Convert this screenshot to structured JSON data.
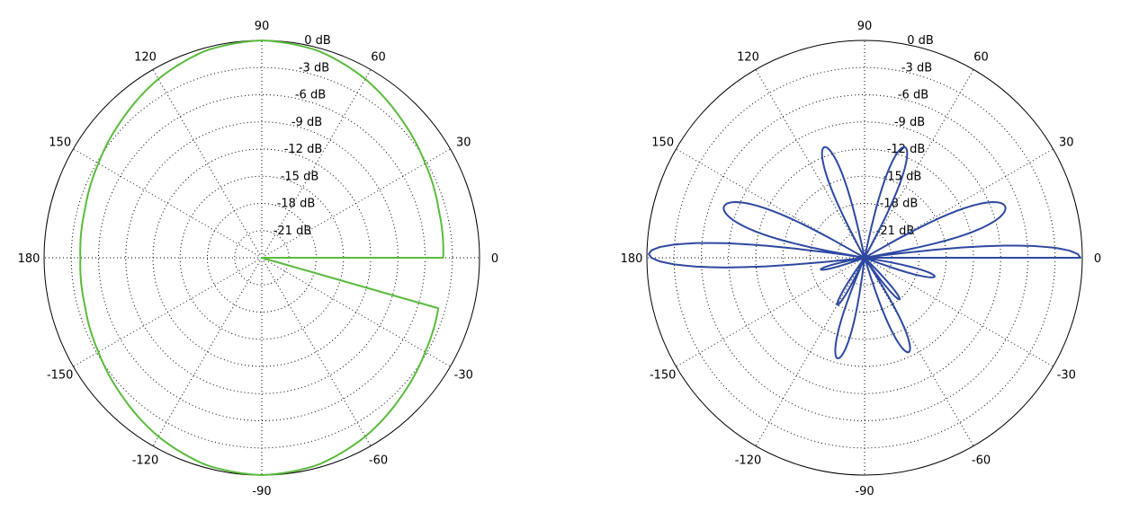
{
  "chart_data": [
    {
      "type": "polar",
      "angle_labels": [
        "0",
        "30",
        "60",
        "90",
        "120",
        "150",
        "180",
        "-150",
        "-120",
        "-90",
        "-60",
        "-30"
      ],
      "angle_values": [
        0,
        30,
        60,
        90,
        120,
        150,
        180,
        -150,
        -120,
        -90,
        -60,
        -30
      ],
      "radial_labels": [
        "0 dB",
        "-3 dB",
        "-6 dB",
        "-9 dB",
        "-12 dB",
        "-15 dB",
        "-18 dB",
        "-21 dB"
      ],
      "radial_values": [
        0,
        -3,
        -6,
        -9,
        -12,
        -15,
        -18,
        -21
      ],
      "rlim": [
        -24,
        0
      ],
      "grid": true,
      "series": [
        {
          "color": "#5aba3c",
          "theta": [
            0,
            15,
            30,
            45,
            60,
            75,
            90,
            105,
            120,
            135,
            150,
            165,
            180,
            195,
            210,
            225,
            240,
            255,
            270,
            285,
            300,
            315,
            330,
            345
          ],
          "r": [
            -4,
            -3.8,
            -3.2,
            -2.3,
            -1.2,
            -0.3,
            0,
            -0.3,
            -1.2,
            -2.3,
            -3.2,
            -3.8,
            -4,
            -3.8,
            -3.2,
            -2.3,
            -1.2,
            -0.3,
            0,
            -0.3,
            -1.2,
            -2.3,
            -3.2,
            -3.8
          ]
        },
        {
          "color": "#2d48a0",
          "theta": [
            0,
            1,
            2,
            3,
            4,
            5,
            6,
            7,
            8,
            9,
            10,
            11,
            12,
            13,
            14,
            15,
            16,
            17,
            18,
            19,
            20,
            21,
            22,
            23,
            24,
            25,
            26,
            27,
            28,
            29,
            30,
            31,
            32,
            33,
            34,
            35,
            36,
            37,
            38,
            39,
            40,
            41,
            42,
            43,
            44,
            45,
            46,
            47,
            48,
            49,
            50,
            51,
            52,
            53,
            54,
            55,
            56,
            57,
            58,
            59,
            60,
            61,
            62,
            63,
            64,
            65,
            66,
            67,
            68,
            69,
            70,
            71,
            72,
            73,
            74,
            75,
            76,
            77,
            78,
            79,
            80,
            81,
            82,
            83,
            84,
            85,
            86,
            87,
            88,
            89,
            90,
            91,
            92,
            93,
            94,
            95,
            96,
            97,
            98,
            99,
            100,
            101,
            102,
            103,
            104,
            105,
            106,
            107,
            108,
            109,
            110,
            111,
            112,
            113,
            114,
            115,
            116,
            117,
            118,
            119,
            120,
            121,
            122,
            123,
            124,
            125,
            126,
            127,
            128,
            129,
            130,
            131,
            132,
            133,
            134,
            135,
            136,
            137,
            138,
            139,
            140,
            141,
            142,
            143,
            144,
            145,
            146,
            147,
            148,
            149,
            150,
            151,
            152,
            153,
            154,
            155,
            156,
            157,
            158,
            159,
            160,
            161,
            162,
            163,
            164,
            165,
            166,
            167,
            168,
            169,
            170,
            171,
            172,
            173,
            174,
            175,
            176,
            177,
            178,
            179,
            180,
            181,
            182,
            183,
            184,
            185,
            186,
            187,
            188,
            189,
            190,
            191,
            192,
            193,
            194,
            195,
            196,
            197,
            198,
            199,
            200,
            201,
            202,
            203,
            204,
            205,
            206,
            207,
            208,
            209,
            210,
            211,
            212,
            213,
            214,
            215,
            216,
            217,
            218,
            219,
            220,
            221,
            222,
            223,
            224,
            225,
            226,
            227,
            228,
            229,
            230,
            231,
            232,
            233,
            234,
            235,
            236,
            237,
            238,
            239,
            240,
            241,
            242,
            243,
            244,
            245,
            246,
            247,
            248,
            249,
            250,
            251,
            252,
            253,
            254,
            255,
            256,
            257,
            258,
            259,
            260,
            261,
            262,
            263,
            264,
            265,
            266,
            267,
            268,
            269,
            270,
            271,
            272,
            273,
            274,
            275,
            276,
            277,
            278,
            279,
            280,
            281,
            282,
            283,
            284,
            285,
            286,
            287,
            288,
            289,
            290,
            291,
            292,
            293,
            294,
            295,
            296,
            297,
            298,
            299,
            300,
            301,
            302,
            303,
            304,
            305,
            306,
            307,
            308,
            309,
            310,
            311,
            312,
            313,
            314,
            315,
            316,
            317,
            318,
            319,
            320,
            321,
            322,
            323,
            324,
            325,
            326,
            327,
            328,
            329,
            330,
            331,
            332,
            333,
            334,
            335,
            336,
            337,
            338,
            339,
            340,
            341,
            342,
            343,
            344,
            345,
            346,
            347,
            348,
            349,
            350,
            351,
            352,
            353,
            354,
            355,
            356,
            357,
            358,
            359,
            360
          ],
          "r": [
            -0.2,
            -0.5,
            -1.4,
            -3,
            -5.4,
            -8.6,
            -13.1,
            -19.4,
            -24,
            -24,
            -24,
            -24,
            -24,
            -24,
            -24,
            -24,
            -24,
            -24,
            -24,
            -24,
            -24,
            -24,
            -24,
            -24,
            -24,
            -24,
            -24,
            -24,
            -24,
            -24,
            -24,
            -24,
            -24,
            -24,
            -24,
            -24,
            -24,
            -24,
            -24,
            -24,
            -24,
            -24,
            -24,
            -24,
            -24,
            -24,
            -24,
            -24,
            -24,
            -24,
            -24,
            -24,
            -24,
            -24,
            -24,
            -24,
            -24,
            -24,
            -24,
            -24,
            -24,
            -24,
            -24,
            -24,
            -24,
            -24,
            -24,
            -24,
            -24,
            -24,
            -24,
            -24,
            -24,
            -24,
            -24,
            -24,
            -24,
            -24,
            -24,
            -24,
            -24,
            -24,
            -24,
            -24,
            -24,
            -24,
            -24,
            -24,
            -24,
            -24,
            -24,
            -24,
            -24,
            -24,
            -24,
            -24,
            -24,
            -24,
            -24,
            -24,
            -24,
            -24,
            -24,
            -24,
            -24,
            -24,
            -24,
            -24,
            -24,
            -24,
            -24,
            -24,
            -24,
            -24,
            -24,
            -24,
            -24,
            -24,
            -24,
            -24,
            -24,
            -24,
            -24,
            -24,
            -24,
            -24,
            -24,
            -24,
            -24,
            -24,
            -24,
            -24,
            -24,
            -24,
            -24,
            -24,
            -24,
            -24,
            -24,
            -24,
            -24,
            -24,
            -24,
            -24,
            -24,
            -24,
            -24,
            -24,
            -24,
            -24,
            -24,
            -24,
            -24,
            -24,
            -24,
            -24,
            -24,
            -24,
            -24,
            -24,
            -24,
            -24,
            -24,
            -24,
            -24,
            -24,
            -24,
            -24,
            -24,
            -24,
            -24,
            -24,
            -19.4,
            -13.1,
            -8.6,
            -5.4,
            -3,
            -1.4,
            -0.5,
            -0.2,
            -0.5,
            -1.4,
            -3,
            -5.4,
            -8.6,
            -13.1,
            -19.4,
            -24,
            -24,
            -24,
            -24,
            -24,
            -24,
            -24,
            -24,
            -24,
            -24,
            -24,
            -24,
            -24,
            -24,
            -24,
            -24,
            -24,
            -24,
            -24,
            -24,
            -24,
            -24,
            -24,
            -24,
            -24,
            -24,
            -24,
            -24,
            -24,
            -24,
            -24,
            -24,
            -24,
            -24,
            -24,
            -24,
            -24,
            -24,
            -24,
            -24,
            -24,
            -24,
            -24,
            -24,
            -24,
            -24,
            -24,
            -24,
            -24,
            -24,
            -24,
            -24,
            -24,
            -24,
            -24,
            -24,
            -24,
            -24,
            -24,
            -24,
            -24,
            -24,
            -24,
            -24,
            -24,
            -24,
            -24,
            -24,
            -24,
            -24,
            -24,
            -24,
            -24,
            -24,
            -24,
            -24,
            -24,
            -24,
            -24,
            -24,
            -24,
            -24,
            -24,
            -24,
            -24,
            -24,
            -24,
            -24,
            -24,
            -24,
            -24,
            -24,
            -24,
            -24,
            -24,
            -24,
            -24,
            -24,
            -24,
            -24,
            -24,
            -24,
            -24,
            -24,
            -24,
            -24,
            -24,
            -24,
            -24,
            -24,
            -24,
            -24,
            -24,
            -24,
            -24,
            -24,
            -24,
            -24,
            -24,
            -24,
            -24,
            -24,
            -24,
            -24,
            -24,
            -24,
            -24,
            -24,
            -24,
            -24,
            -24,
            -24,
            -24,
            -24,
            -24,
            -24,
            -24,
            -24,
            -24,
            -24,
            -24,
            -24,
            -24,
            -24,
            -24,
            -24,
            -24,
            -24,
            -24,
            -24,
            -24,
            -24,
            -24,
            -24,
            -24,
            -24,
            -24,
            -24,
            -24,
            -24,
            -24,
            -24,
            -24,
            -24,
            -24,
            -24,
            -24,
            -24,
            -24,
            -24,
            -24,
            -24,
            -24,
            -24,
            -24,
            -24,
            -19.4,
            -13.1,
            -8.6,
            -5.4,
            -3,
            -1.4,
            -0.5,
            -0.2
          ],
          "lobes": [
            {
              "dir": 160,
              "peak_db": -7.5,
              "width": 7
            },
            {
              "dir": 20,
              "peak_db": -7.5,
              "width": 7
            },
            {
              "dir": 110,
              "peak_db": -11,
              "width": 6
            },
            {
              "dir": 70,
              "peak_db": -11,
              "width": 6
            },
            {
              "dir": 345,
              "peak_db": -16,
              "width": 5
            },
            {
              "dir": 195,
              "peak_db": -19,
              "width": 5
            },
            {
              "dir": 255,
              "peak_db": -12.5,
              "width": 6
            },
            {
              "dir": 295,
              "peak_db": -12.5,
              "width": 6
            },
            {
              "dir": 240,
              "peak_db": -18,
              "width": 5
            },
            {
              "dir": 310,
              "peak_db": -18,
              "width": 5
            }
          ]
        }
      ]
    }
  ]
}
